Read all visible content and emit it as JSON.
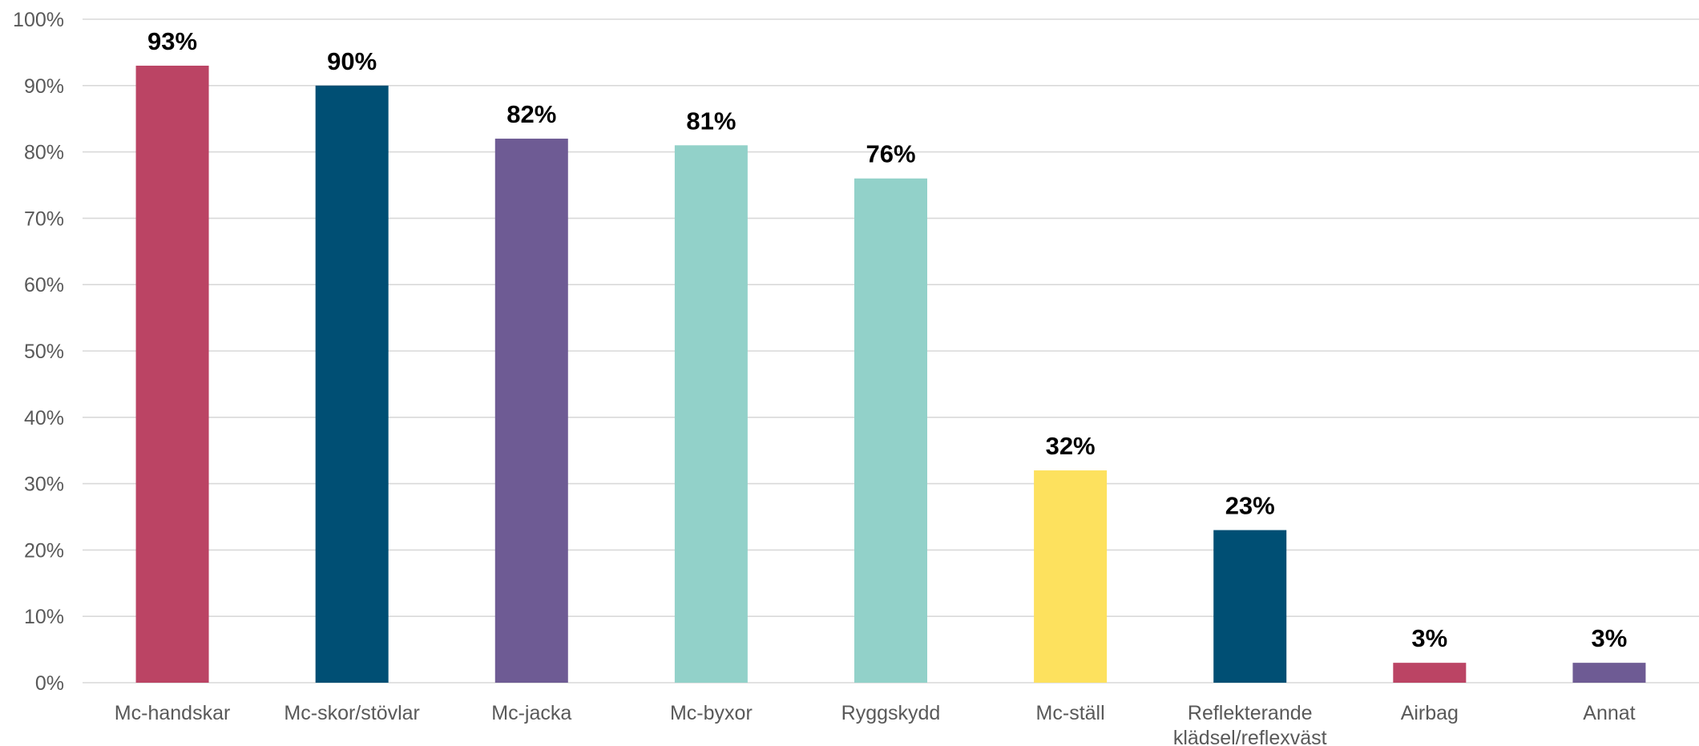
{
  "chart_data": {
    "type": "bar",
    "title": "",
    "xlabel": "",
    "ylabel": "",
    "ylim": [
      0,
      100
    ],
    "yticks": [
      0,
      10,
      20,
      30,
      40,
      50,
      60,
      70,
      80,
      90,
      100
    ],
    "ytick_labels": [
      "0%",
      "10%",
      "20%",
      "30%",
      "40%",
      "50%",
      "60%",
      "70%",
      "80%",
      "90%",
      "100%"
    ],
    "grid": true,
    "legend": "none",
    "categories": [
      [
        "Mc-handskar"
      ],
      [
        "Mc-skor/stövlar"
      ],
      [
        "Mc-jacka"
      ],
      [
        "Mc-byxor"
      ],
      [
        "Ryggskydd"
      ],
      [
        "Mc-ställ"
      ],
      [
        "Reflekterande",
        "klädsel/reflexväst"
      ],
      [
        "Airbag"
      ],
      [
        "Annat"
      ]
    ],
    "values": [
      93,
      90,
      82,
      81,
      76,
      32,
      23,
      3,
      3
    ],
    "data_labels": [
      "93%",
      "90%",
      "82%",
      "81%",
      "76%",
      "32%",
      "23%",
      "3%",
      "3%"
    ],
    "colors": [
      "#bb4464",
      "#004f74",
      "#6e5b94",
      "#92d1c9",
      "#92d1c9",
      "#fde15e",
      "#004f74",
      "#bb4464",
      "#6e5b94"
    ]
  }
}
